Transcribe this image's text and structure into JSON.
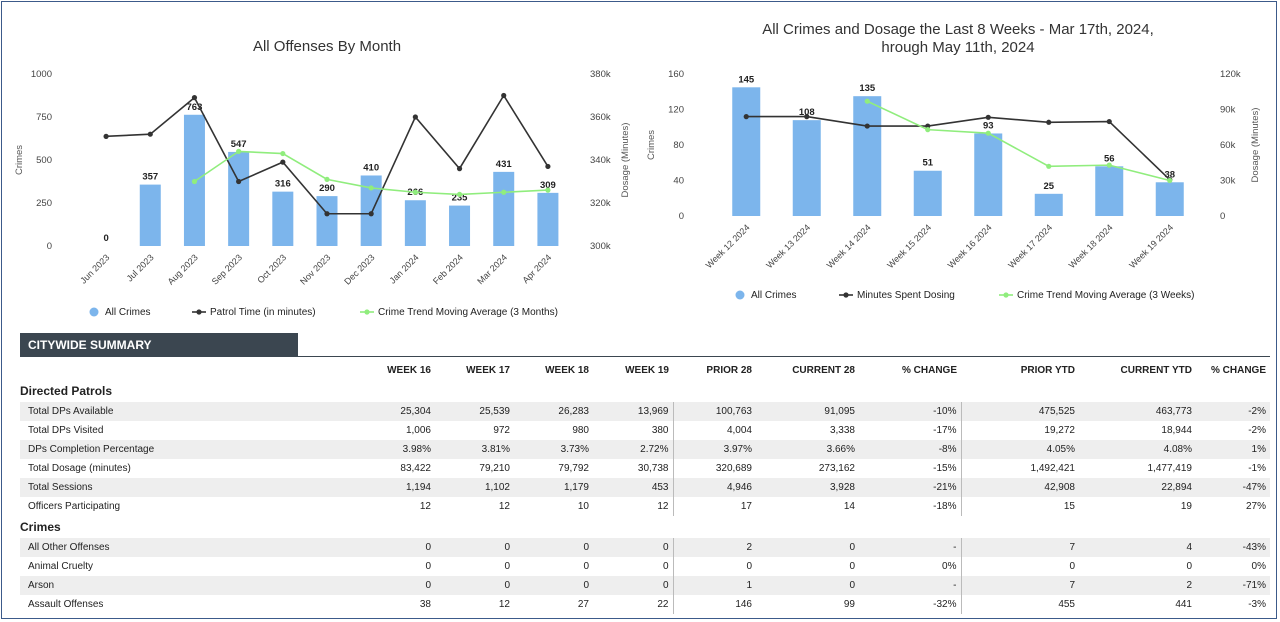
{
  "chart_data": [
    {
      "type": "bar",
      "title": "All Offenses By Month",
      "categories": [
        "Jun 2023",
        "Jul 2023",
        "Aug 2023",
        "Sep 2023",
        "Oct 2023",
        "Nov 2023",
        "Dec 2023",
        "Jan 2024",
        "Feb 2024",
        "Mar 2024",
        "Apr 2024"
      ],
      "ylabel": "Crimes",
      "y2label": "Dosage (Minutes)",
      "ylim": [
        0,
        1000
      ],
      "yticks": [
        "0",
        "250",
        "500",
        "750",
        "1000"
      ],
      "y2lim": [
        300000,
        380000
      ],
      "y2ticks": [
        "300k",
        "320k",
        "340k",
        "360k",
        "380k"
      ],
      "series": [
        {
          "name": "All Crimes",
          "kind": "bar",
          "axis": "left",
          "color": "#7cb5ec",
          "values": [
            0,
            357,
            763,
            547,
            316,
            290,
            410,
            266,
            235,
            431,
            309
          ]
        },
        {
          "name": "Patrol Time (in minutes)",
          "kind": "line",
          "axis": "right",
          "color": "#333333",
          "values": [
            351000,
            352000,
            369000,
            330000,
            339000,
            315000,
            315000,
            360000,
            336000,
            370000,
            337000
          ]
        },
        {
          "name": "Crime Trend Moving Average (3 Months)",
          "kind": "line",
          "axis": "right",
          "color": "#90ed7d",
          "values": [
            null,
            null,
            330000,
            344000,
            343000,
            331000,
            327000,
            325000,
            324000,
            325000,
            326000
          ]
        }
      ]
    },
    {
      "type": "bar",
      "title": "All Crimes and Dosage the Last 8 Weeks - Mar 17th, 2024 through May 11th, 2024",
      "categories": [
        "Week 12 2024",
        "Week 13 2024",
        "Week 14 2024",
        "Week 15 2024",
        "Week 16 2024",
        "Week 17 2024",
        "Week 18 2024",
        "Week 19 2024"
      ],
      "ylabel": "Crimes",
      "y2label": "Dosage (Minutes)",
      "ylim": [
        0,
        160
      ],
      "yticks": [
        "0",
        "40",
        "80",
        "120",
        "160"
      ],
      "y2lim": [
        0,
        120000
      ],
      "y2ticks": [
        "0",
        "30k",
        "60k",
        "90k",
        "120k"
      ],
      "series": [
        {
          "name": "All Crimes",
          "kind": "bar",
          "axis": "left",
          "color": "#7cb5ec",
          "values": [
            145,
            108,
            135,
            51,
            93,
            25,
            56,
            38
          ]
        },
        {
          "name": "Minutes Spent Dosing",
          "kind": "line",
          "axis": "right",
          "color": "#333333",
          "values": [
            84000,
            84000,
            76000,
            76000,
            83400,
            79200,
            79800,
            30700
          ]
        },
        {
          "name": "Crime Trend Moving Average (3 Weeks)",
          "kind": "line",
          "axis": "right",
          "color": "#90ed7d",
          "values": [
            null,
            null,
            97000,
            73000,
            70000,
            42000,
            43000,
            30000
          ]
        }
      ]
    }
  ],
  "summary": {
    "title": "CITYWIDE SUMMARY",
    "headers": [
      "WEEK 16",
      "WEEK 17",
      "WEEK 18",
      "WEEK 19",
      "PRIOR 28",
      "CURRENT 28",
      "% CHANGE",
      "PRIOR YTD",
      "CURRENT YTD",
      "% CHANGE"
    ],
    "sections": [
      {
        "name": "Directed Patrols",
        "rows": [
          {
            "label": "Total DPs Available",
            "values": [
              "25,304",
              "25,539",
              "26,283",
              "13,969",
              "100,763",
              "91,095",
              "-10%",
              "475,525",
              "463,773",
              "-2%"
            ]
          },
          {
            "label": "Total DPs Visited",
            "values": [
              "1,006",
              "972",
              "980",
              "380",
              "4,004",
              "3,338",
              "-17%",
              "19,272",
              "18,944",
              "-2%"
            ]
          },
          {
            "label": "DPs Completion Percentage",
            "values": [
              "3.98%",
              "3.81%",
              "3.73%",
              "2.72%",
              "3.97%",
              "3.66%",
              "-8%",
              "4.05%",
              "4.08%",
              "1%"
            ]
          },
          {
            "label": "Total Dosage (minutes)",
            "values": [
              "83,422",
              "79,210",
              "79,792",
              "30,738",
              "320,689",
              "273,162",
              "-15%",
              "1,492,421",
              "1,477,419",
              "-1%"
            ]
          },
          {
            "label": "Total Sessions",
            "values": [
              "1,194",
              "1,102",
              "1,179",
              "453",
              "4,946",
              "3,928",
              "-21%",
              "42,908",
              "22,894",
              "-47%"
            ]
          },
          {
            "label": "Officers Participating",
            "values": [
              "12",
              "12",
              "10",
              "12",
              "17",
              "14",
              "-18%",
              "15",
              "19",
              "27%"
            ]
          }
        ]
      },
      {
        "name": "Crimes",
        "rows": [
          {
            "label": "All Other Offenses",
            "values": [
              "0",
              "0",
              "0",
              "0",
              "2",
              "0",
              "-",
              "7",
              "4",
              "-43%"
            ]
          },
          {
            "label": "Animal Cruelty",
            "values": [
              "0",
              "0",
              "0",
              "0",
              "0",
              "0",
              "0%",
              "0",
              "0",
              "0%"
            ]
          },
          {
            "label": "Arson",
            "values": [
              "0",
              "0",
              "0",
              "0",
              "1",
              "0",
              "-",
              "7",
              "2",
              "-71%"
            ]
          },
          {
            "label": "Assault Offenses",
            "values": [
              "38",
              "12",
              "27",
              "22",
              "146",
              "99",
              "-32%",
              "455",
              "441",
              "-3%"
            ]
          }
        ]
      }
    ]
  }
}
